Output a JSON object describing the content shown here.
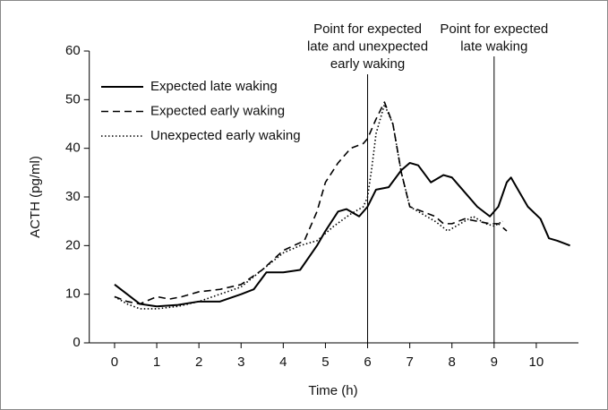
{
  "chart_data": {
    "type": "line",
    "xlabel": "Time (h)",
    "ylabel": "ACTH (pg/ml)",
    "xlim": [
      -0.6,
      11
    ],
    "ylim": [
      0,
      60
    ],
    "xticks": [
      0,
      1,
      2,
      3,
      4,
      5,
      6,
      7,
      8,
      9,
      10
    ],
    "yticks": [
      0,
      10,
      20,
      30,
      40,
      50,
      60
    ],
    "legend": "upper left",
    "series": [
      {
        "name": "Expected late waking",
        "color": "#000000",
        "style": "solid",
        "x": [
          0,
          0.3,
          0.6,
          1,
          1.5,
          2,
          2.5,
          3,
          3.3,
          3.6,
          4,
          4.4,
          4.8,
          5,
          5.3,
          5.5,
          5.8,
          6,
          6.2,
          6.5,
          6.8,
          7,
          7.2,
          7.5,
          7.8,
          8,
          8.3,
          8.6,
          8.9,
          9.1,
          9.3,
          9.4,
          9.6,
          9.8,
          10.1,
          10.3,
          10.5,
          10.8
        ],
        "values": [
          12,
          10,
          8,
          7.5,
          7.8,
          8.5,
          8.5,
          10,
          11,
          14.5,
          14.5,
          15,
          20,
          23,
          27,
          27.5,
          26,
          28,
          31.5,
          32,
          35.5,
          37,
          36.5,
          33,
          34.5,
          34,
          31,
          28,
          26,
          28,
          33,
          34,
          31,
          28,
          25.5,
          21.5,
          21,
          20
        ]
      },
      {
        "name": "Expected early waking",
        "color": "#000000",
        "style": "dashed",
        "x": [
          0,
          0.3,
          0.6,
          1,
          1.3,
          1.6,
          2,
          2.5,
          3,
          3.5,
          4,
          4.5,
          4.8,
          5,
          5.3,
          5.6,
          5.9,
          6,
          6.2,
          6.4,
          6.6,
          6.8,
          7,
          7.3,
          7.6,
          7.8,
          8,
          8.3,
          8.6,
          8.9,
          9.1,
          9.3
        ],
        "values": [
          9.5,
          8.5,
          8,
          9.5,
          9,
          9.5,
          10.5,
          11,
          12,
          15,
          19,
          21,
          27,
          33,
          37,
          40,
          41,
          42,
          46,
          49.5,
          45,
          35,
          28,
          27,
          26,
          24.5,
          24.5,
          25.5,
          25,
          24.5,
          24.5,
          23
        ]
      },
      {
        "name": "Unexpected early waking",
        "color": "#000000",
        "style": "dotted",
        "x": [
          0,
          0.3,
          0.6,
          1,
          1.5,
          2,
          2.5,
          3,
          3.5,
          4,
          4.4,
          4.8,
          5.2,
          5.6,
          5.9,
          6,
          6.1,
          6.2,
          6.4,
          6.6,
          6.8,
          7,
          7.3,
          7.6,
          7.9,
          8.2,
          8.5,
          8.8,
          9,
          9.2
        ],
        "values": [
          9.5,
          8,
          7,
          7,
          7.5,
          8.5,
          10,
          11.5,
          15,
          18.5,
          20,
          21,
          24,
          26.5,
          28,
          30,
          36,
          43,
          49,
          45,
          35,
          28,
          26.5,
          25,
          23,
          24.5,
          26,
          24.5,
          24,
          25
        ]
      }
    ],
    "annotations": [
      {
        "x": 6,
        "text": [
          "Point for expected",
          "late and unexpected",
          "early waking"
        ]
      },
      {
        "x": 9,
        "text": [
          "Point for expected",
          "late waking"
        ]
      }
    ]
  }
}
